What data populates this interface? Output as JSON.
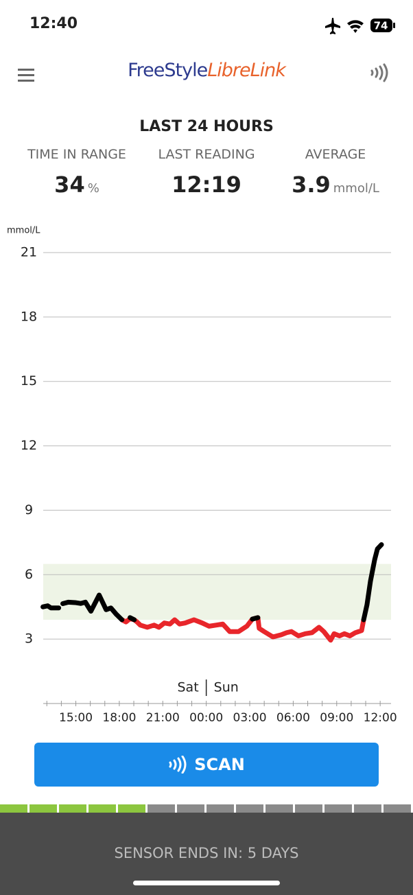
{
  "status_bar": {
    "time": "12:40",
    "battery": "74"
  },
  "header": {
    "logo_part1": "FreeStyle",
    "logo_part2": "LibreLink"
  },
  "summary": {
    "title": "LAST 24 HOURS",
    "items": [
      {
        "label": "TIME IN RANGE",
        "value": "34",
        "unit": "%"
      },
      {
        "label": "LAST READING",
        "value": "12:19"
      },
      {
        "label": "AVERAGE",
        "value": "3.9",
        "unit": "mmol/L"
      }
    ]
  },
  "chart_data": {
    "type": "line",
    "y_label": "mmol/L",
    "ylim": [
      0,
      21
    ],
    "yticks": [
      3,
      6,
      9,
      12,
      15,
      18,
      21
    ],
    "grid": true,
    "target_range": [
      3.9,
      6.5
    ],
    "target_color": "#eef4e6",
    "xlim": [
      12.75,
      36.75
    ],
    "xticks": [
      {
        "value": 15,
        "label": "15:00"
      },
      {
        "value": 18,
        "label": "18:00"
      },
      {
        "value": 21,
        "label": "21:00"
      },
      {
        "value": 24,
        "label": "00:00"
      },
      {
        "value": 27,
        "label": "03:00"
      },
      {
        "value": 30,
        "label": "06:00"
      },
      {
        "value": 33,
        "label": "09:00"
      },
      {
        "value": 36,
        "label": "12:00"
      }
    ],
    "xminorticks": [
      13,
      14,
      16,
      17,
      19,
      20,
      22,
      23,
      25,
      26,
      28,
      29,
      31,
      32,
      34,
      35
    ],
    "day_divider": {
      "x": 24,
      "before": "Sat",
      "after": "Sun"
    },
    "series": [
      {
        "color": "#e8262b",
        "x": [
          18.18,
          18.46,
          18.74,
          19.03,
          19.22,
          19.45,
          19.93,
          20.4,
          20.73,
          21.11,
          21.49,
          21.82,
          22.16,
          22.54,
          23.15,
          23.72,
          24.19,
          24.67,
          25.14,
          25.62,
          26.23,
          26.8,
          27.18,
          27.56,
          27.65,
          27.99,
          28.6,
          29.17,
          29.55,
          29.88,
          30.36,
          30.83,
          31.3,
          31.78,
          32.11,
          32.58,
          32.82,
          33.2,
          33.53,
          33.91,
          34.29,
          34.72,
          34.86
        ],
        "values": [
          3.9,
          3.8,
          3.95,
          3.9,
          3.8,
          3.65,
          3.55,
          3.65,
          3.55,
          3.75,
          3.7,
          3.9,
          3.7,
          3.75,
          3.9,
          3.75,
          3.6,
          3.65,
          3.7,
          3.35,
          3.35,
          3.6,
          3.93,
          4.0,
          3.5,
          3.35,
          3.1,
          3.2,
          3.3,
          3.35,
          3.15,
          3.25,
          3.3,
          3.55,
          3.35,
          2.95,
          3.25,
          3.15,
          3.25,
          3.15,
          3.3,
          3.4,
          3.9
        ]
      },
      {
        "color": "#000000",
        "x": [
          12.73,
          13.06,
          13.29,
          13.82,
          null,
          14.1,
          14.48,
          14.95,
          15.33,
          15.66,
          16.04,
          16.61,
          17.09,
          17.42,
          17.8,
          18.18,
          null,
          18.74,
          19.03,
          null,
          27.18,
          27.56,
          null,
          34.86,
          35.09,
          35.33,
          35.62,
          35.81,
          36.09
        ],
        "values": [
          4.5,
          4.55,
          4.45,
          4.45,
          null,
          4.65,
          4.72,
          4.7,
          4.66,
          4.72,
          4.3,
          5.05,
          4.37,
          4.45,
          4.15,
          3.9,
          null,
          4.0,
          3.9,
          null,
          3.93,
          4.0,
          null,
          3.9,
          4.6,
          5.7,
          6.7,
          7.2,
          7.4
        ]
      }
    ]
  },
  "button": {
    "label": "SCAN"
  },
  "sensor": {
    "segments_total": 14,
    "segments_used": 5,
    "text": "SENSOR ENDS IN: 5 DAYS"
  }
}
